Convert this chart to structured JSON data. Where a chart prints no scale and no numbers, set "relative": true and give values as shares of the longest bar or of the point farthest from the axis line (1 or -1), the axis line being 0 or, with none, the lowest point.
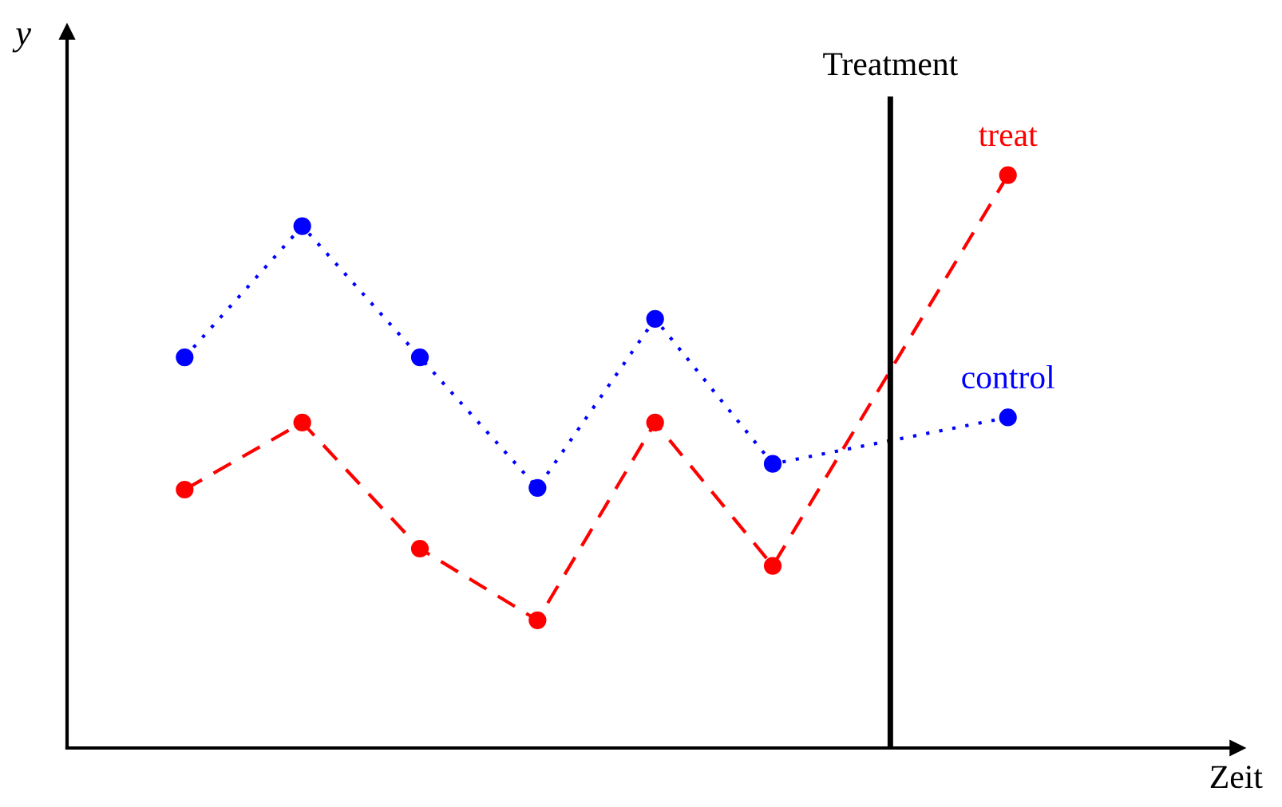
{
  "chart_data": {
    "type": "line",
    "relative": true,
    "xlabel": "Zeit",
    "ylabel": "y",
    "categories": [
      null,
      null,
      null,
      null,
      null,
      null,
      null,
      null
    ],
    "tick_labels": false,
    "marker": "circle",
    "series": [
      {
        "name": "control",
        "color": "#0000ff",
        "line_style": "dotted",
        "values": [
          0.682,
          0.911,
          0.682,
          0.454,
          0.749,
          0.496,
          null,
          0.577
        ]
      },
      {
        "name": "treat",
        "color": "#ff0000",
        "line_style": "dashed",
        "values": [
          0.451,
          0.568,
          0.348,
          0.223,
          0.568,
          0.318,
          null,
          1
        ]
      }
    ],
    "annotations": [
      "Treatment"
    ]
  }
}
